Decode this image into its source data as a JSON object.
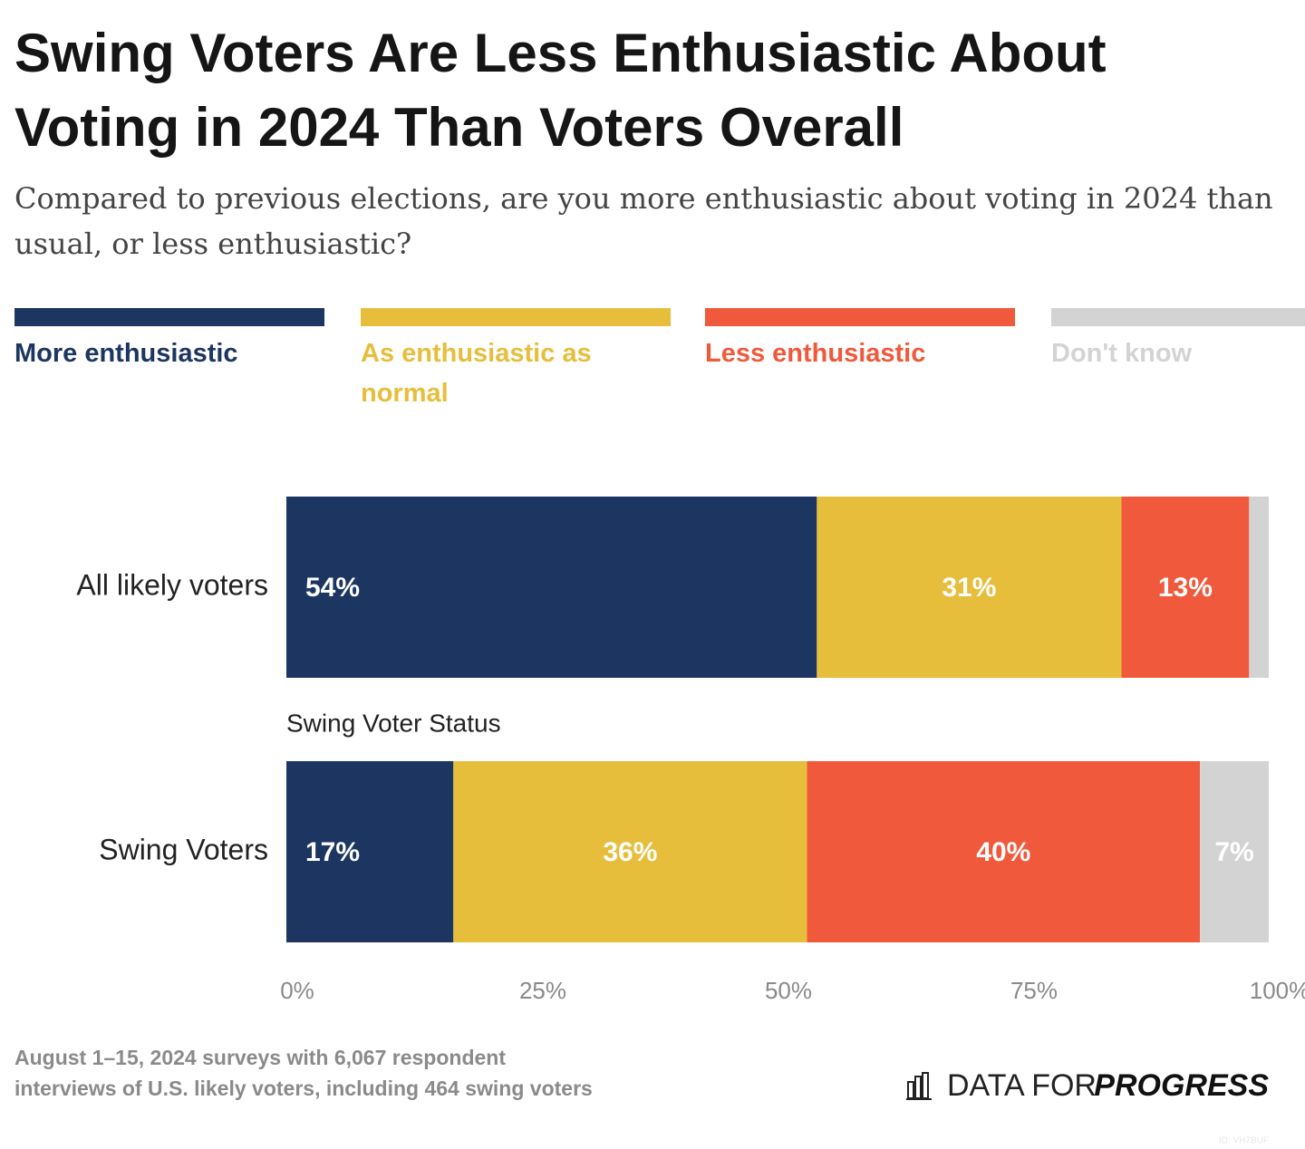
{
  "chart_data": {
    "type": "bar",
    "orientation": "horizontal",
    "stacked": true,
    "title": "Swing Voters Are Less Enthusiastic About Voting in 2024 Than Voters Overall",
    "subtitle": "Compared to previous elections, are you more enthusiastic about voting in 2024 than usual, or less enthusiastic?",
    "categories": [
      "All likely voters",
      "Swing Voters"
    ],
    "group_label": "Swing Voter Status",
    "series": [
      {
        "name": "More enthusiastic",
        "color": "#1c3661",
        "values": [
          54,
          17
        ],
        "value_labels": [
          "54%",
          "17%"
        ]
      },
      {
        "name": "As enthusiastic as normal",
        "color": "#e7be3c",
        "values": [
          31,
          36
        ],
        "value_labels": [
          "31%",
          "36%"
        ]
      },
      {
        "name": "Less enthusiastic",
        "color": "#f0593b",
        "values": [
          13,
          40
        ],
        "value_labels": [
          "13%",
          "40%"
        ]
      },
      {
        "name": "Don't know",
        "color": "#d3d3d3",
        "values": [
          2,
          7
        ],
        "value_labels": [
          null,
          "7%"
        ]
      }
    ],
    "xlim": [
      0,
      100
    ],
    "xticks": [
      {
        "value": 0,
        "label": "0%"
      },
      {
        "value": 25,
        "label": "25%"
      },
      {
        "value": 50,
        "label": "50%"
      },
      {
        "value": 75,
        "label": "75%"
      },
      {
        "value": 100,
        "label": "100%"
      }
    ],
    "grid": false,
    "note": "August 1–15, 2024 surveys with 6,067 respondent interviews of U.S. likely voters, including 464 swing voters"
  },
  "branding": {
    "org_plain": "DATA FOR",
    "org_bold": "PROGRESS",
    "id": "ID: VH7BUF"
  }
}
